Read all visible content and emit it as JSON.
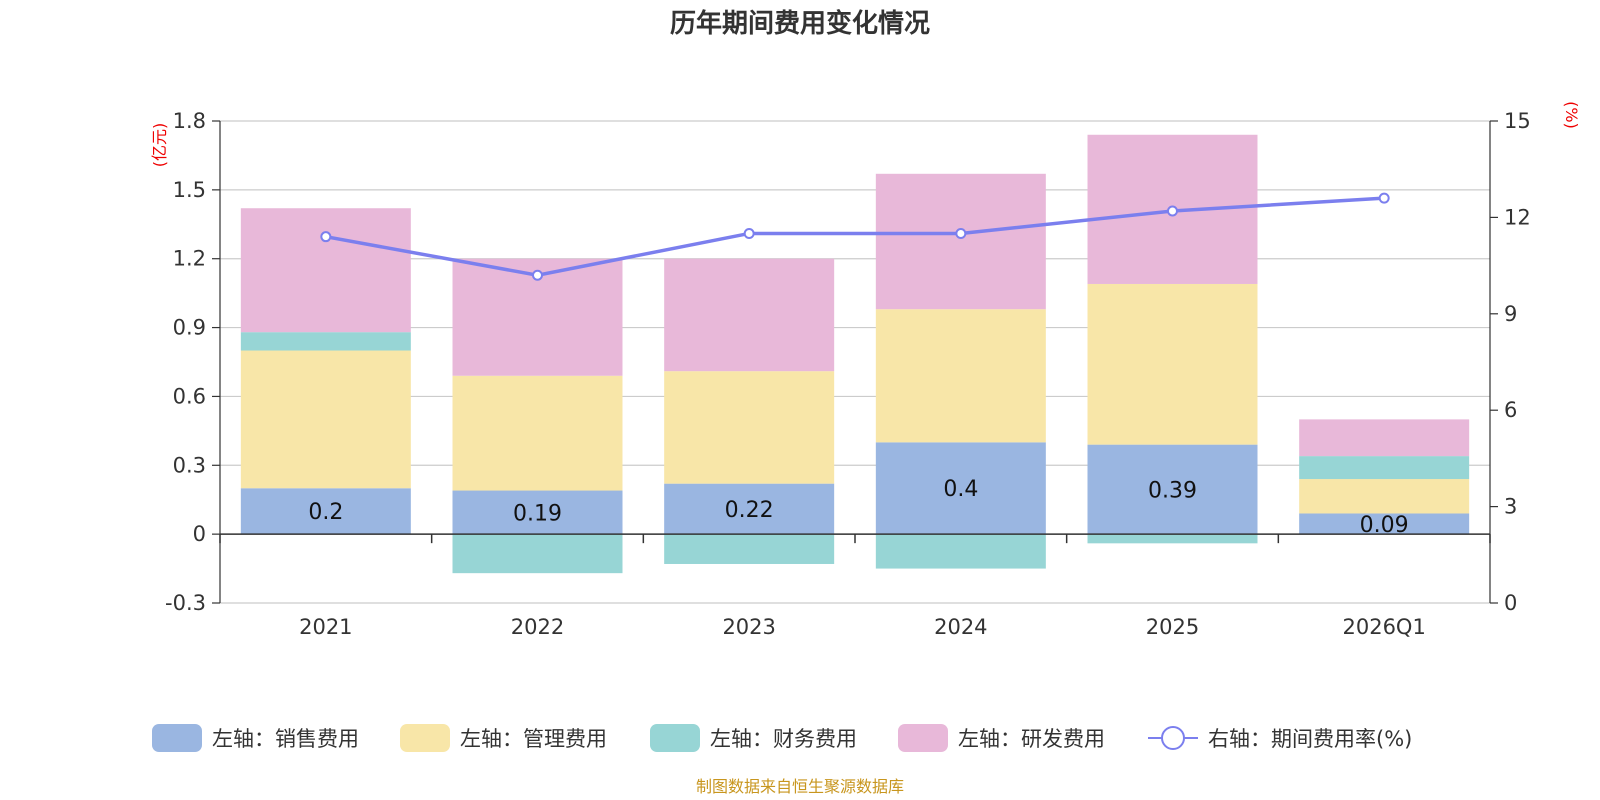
{
  "chart_data": {
    "type": "bar",
    "stacked": true,
    "title": "历年期间费用变化情况",
    "categories": [
      "2021",
      "2022",
      "2023",
      "2024",
      "2025",
      "2026Q1"
    ],
    "left_axis": {
      "unit_label": "(亿元)",
      "ylim": [
        -0.3,
        1.8
      ],
      "ticks": [
        "-0.3",
        "0",
        "0.3",
        "0.6",
        "0.9",
        "1.2",
        "1.5",
        "1.8"
      ]
    },
    "right_axis": {
      "unit_label": "(%)",
      "ylim": [
        0,
        15
      ],
      "ticks": [
        "0",
        "3",
        "6",
        "9",
        "12",
        "15"
      ]
    },
    "series": [
      {
        "name": "左轴：销售费用",
        "axis": "left",
        "color": "#9ab6e1",
        "values": [
          0.2,
          0.19,
          0.22,
          0.4,
          0.39,
          0.09
        ],
        "labels": [
          "0.2",
          "0.19",
          "0.22",
          "0.4",
          "0.39",
          "0.09"
        ]
      },
      {
        "name": "左轴：管理费用",
        "axis": "left",
        "color": "#f8e6a8",
        "values": [
          0.6,
          0.5,
          0.49,
          0.58,
          0.7,
          0.15
        ]
      },
      {
        "name": "左轴：财务费用",
        "axis": "left",
        "color": "#97d5d5",
        "values": [
          0.08,
          -0.17,
          -0.13,
          -0.15,
          -0.04,
          0.1
        ]
      },
      {
        "name": "左轴：研发费用",
        "axis": "left",
        "color": "#e8b8d9",
        "values": [
          0.54,
          0.51,
          0.49,
          0.59,
          0.65,
          0.16
        ]
      },
      {
        "name": "右轴：期间费用率(%)",
        "axis": "right",
        "type": "line",
        "color": "#7b7fee",
        "values": [
          11.4,
          10.2,
          11.5,
          11.5,
          12.2,
          12.6
        ]
      }
    ],
    "legend_position": "bottom",
    "grid": true,
    "source": "制图数据来自恒生聚源数据库"
  }
}
